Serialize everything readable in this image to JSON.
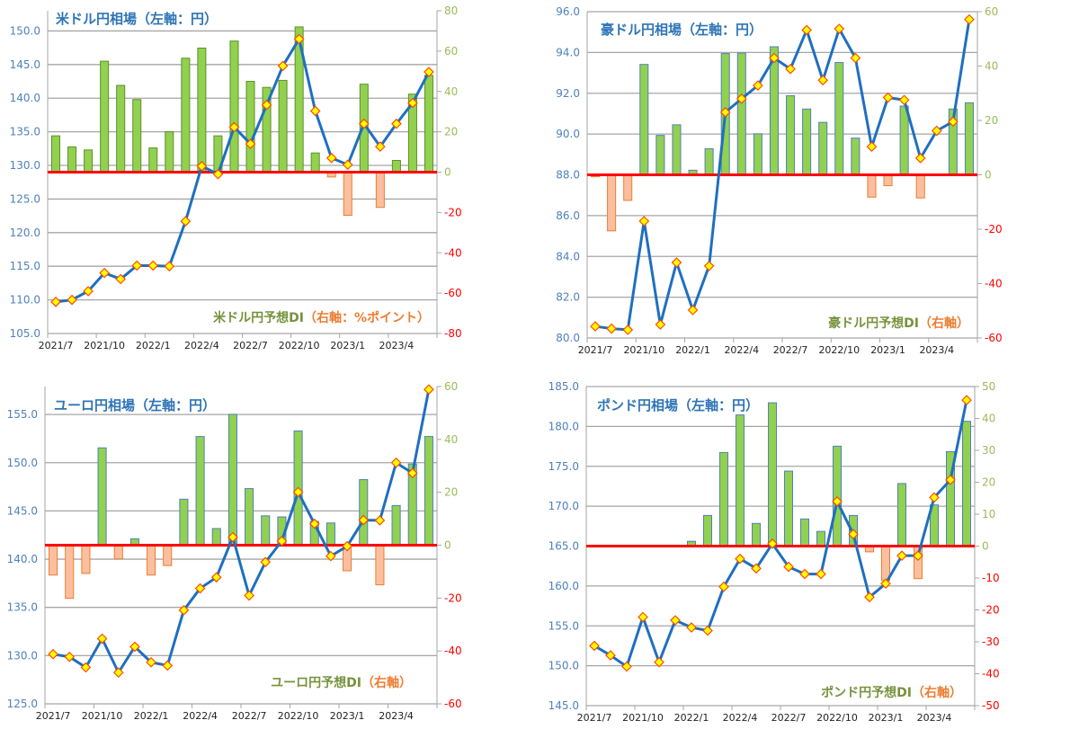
{
  "colors": {
    "line": "#1f6fc0",
    "marker_fill": "#ffff00",
    "marker_stroke": "#ff4b00",
    "bar_positive": "#92d050",
    "bar_negative": "#fbbf9f",
    "bar_negative_border": "#ed7d31",
    "zero_line": "#ff0000",
    "left_axis_text": "#4f81bd",
    "right_axis_positive": "#9bbb59",
    "right_axis_negative": "#ff0000",
    "di_label_green": "#77933c",
    "di_label_orange": "#ed7d31"
  },
  "chart_data": [
    {
      "type": "bar+line",
      "title": "米ドル円相場（左軸：円）",
      "di_label": "米ドル円予想DI",
      "di_axis_note": "（右軸：%ポイント）",
      "categories": [
        "2021/7",
        "2021/8",
        "2021/9",
        "2021/10",
        "2021/11",
        "2021/12",
        "2022/1",
        "2022/2",
        "2022/3",
        "2022/4",
        "2022/5",
        "2022/6",
        "2022/7",
        "2022/8",
        "2022/9",
        "2022/10",
        "2022/11",
        "2022/12",
        "2023/1",
        "2023/2",
        "2023/3",
        "2023/4",
        "2023/5",
        "2023/6"
      ],
      "x_tick_labels": [
        "2021/7",
        "2021/10",
        "2022/1",
        "2022/4",
        "2022/7",
        "2022/10",
        "2023/1",
        "2023/4"
      ],
      "left_axis": {
        "min": 105,
        "max": 153,
        "ticks": [
          "105.0",
          "110.0",
          "115.0",
          "120.0",
          "125.0",
          "130.0",
          "135.0",
          "140.0",
          "145.0",
          "150.0"
        ]
      },
      "right_axis": {
        "min": -80,
        "max": 80,
        "ticks": [
          "-80",
          "-60",
          "-40",
          "-20",
          "0",
          "20",
          "40",
          "60",
          "80"
        ]
      },
      "series": [
        {
          "axis": "left",
          "kind": "line",
          "values": [
            109.7,
            110.0,
            111.3,
            114.0,
            113.1,
            115.1,
            115.1,
            115.0,
            121.7,
            129.9,
            128.7,
            135.7,
            133.2,
            139.0,
            144.8,
            148.8,
            138.1,
            131.1,
            130.1,
            136.2,
            132.8,
            136.2,
            139.3,
            143.9
          ]
        },
        {
          "axis": "right",
          "kind": "bar",
          "values": [
            18,
            12.5,
            11,
            55,
            43,
            36,
            12,
            20,
            56.5,
            61.5,
            18,
            65,
            45,
            42,
            45.5,
            72,
            9.5,
            -2.4,
            -21.4,
            43.6,
            -17.5,
            5.8,
            38.7,
            48
          ]
        }
      ],
      "grid": true
    },
    {
      "type": "bar+line",
      "title": "豪ドル円相場（左軸：円）",
      "di_label": "豪ドル円予想DI",
      "di_axis_note": "（右軸）",
      "categories": [
        "2021/7",
        "2021/8",
        "2021/9",
        "2021/10",
        "2021/11",
        "2021/12",
        "2022/1",
        "2022/2",
        "2022/3",
        "2022/4",
        "2022/5",
        "2022/6",
        "2022/7",
        "2022/8",
        "2022/9",
        "2022/10",
        "2022/11",
        "2022/12",
        "2023/1",
        "2023/2",
        "2023/3",
        "2023/4",
        "2023/5",
        "2023/6"
      ],
      "x_tick_labels": [
        "2021/7",
        "2021/10",
        "2022/1",
        "2022/4",
        "2022/7",
        "2022/10",
        "2023/1",
        "2023/4"
      ],
      "left_axis": {
        "min": 80,
        "max": 96,
        "ticks": [
          "80.0",
          "82.0",
          "84.0",
          "86.0",
          "88.0",
          "90.0",
          "92.0",
          "94.0",
          "96.0"
        ]
      },
      "right_axis": {
        "min": -60,
        "max": 60,
        "ticks": [
          "-60",
          "-40",
          "-20",
          "0",
          "20",
          "40",
          "60"
        ]
      },
      "series": [
        {
          "axis": "left",
          "kind": "line",
          "values": [
            80.57,
            80.46,
            80.4,
            85.73,
            80.66,
            83.7,
            81.37,
            83.53,
            91.07,
            91.73,
            92.38,
            93.73,
            93.19,
            95.1,
            92.64,
            95.16,
            93.73,
            89.38,
            91.79,
            91.67,
            88.82,
            90.16,
            90.61,
            95.62
          ]
        },
        {
          "axis": "right",
          "kind": "bar",
          "values": [
            -0.7,
            -20.6,
            -9.4,
            40.6,
            14.5,
            18.4,
            1.7,
            9.6,
            44.6,
            44.8,
            15.1,
            47.1,
            29.1,
            24.2,
            19.3,
            41.3,
            13.5,
            -8.2,
            -4.0,
            25.3,
            -8.5,
            0,
            24.2,
            26.5
          ]
        }
      ],
      "grid": true
    },
    {
      "type": "bar+line",
      "title": "ユーロ円相場（左軸：円）",
      "di_label": "ユーロ円予想DI",
      "di_axis_note": "（右軸）",
      "categories": [
        "2021/7",
        "2021/8",
        "2021/9",
        "2021/10",
        "2021/11",
        "2021/12",
        "2022/1",
        "2022/2",
        "2022/3",
        "2022/4",
        "2022/5",
        "2022/6",
        "2022/7",
        "2022/8",
        "2022/9",
        "2022/10",
        "2022/11",
        "2022/12",
        "2023/1",
        "2023/2",
        "2023/3",
        "2023/4",
        "2023/5",
        "2023/6"
      ],
      "x_tick_labels": [
        "2021/7",
        "2021/10",
        "2022/1",
        "2022/4",
        "2022/7",
        "2022/10",
        "2023/1",
        "2023/4"
      ],
      "left_axis": {
        "min": 125,
        "max": 157.9,
        "ticks": [
          "125.0",
          "130.0",
          "135.0",
          "140.0",
          "145.0",
          "150.0",
          "155.0"
        ]
      },
      "right_axis": {
        "min": -60,
        "max": 60,
        "ticks": [
          "-60",
          "-40",
          "-20",
          "0",
          "20",
          "40",
          "60"
        ]
      },
      "series": [
        {
          "axis": "left",
          "kind": "line",
          "values": [
            130.15,
            129.87,
            128.78,
            131.76,
            128.25,
            130.92,
            129.31,
            128.97,
            134.71,
            136.97,
            138.12,
            142.28,
            136.23,
            139.7,
            141.88,
            146.96,
            143.67,
            140.32,
            141.35,
            144.05,
            144.02,
            150.0,
            148.92,
            157.6
          ]
        },
        {
          "axis": "right",
          "kind": "bar",
          "values": [
            -11.3,
            -20.1,
            -10.7,
            36.8,
            -5.2,
            2.4,
            -11.3,
            -7.7,
            17.4,
            41.1,
            6.3,
            49.5,
            21.4,
            11.1,
            10.7,
            43.2,
            9.0,
            8.4,
            -9.7,
            24.8,
            -15.0,
            15.0,
            30.7,
            41.1
          ]
        }
      ],
      "grid": true
    },
    {
      "type": "bar+line",
      "title": "ポンド円相場（左軸：円）",
      "di_label": "ポンド円予想DI",
      "di_axis_note": "（右軸）",
      "categories": [
        "2021/7",
        "2021/8",
        "2021/9",
        "2021/10",
        "2021/11",
        "2021/12",
        "2022/1",
        "2022/2",
        "2022/3",
        "2022/4",
        "2022/5",
        "2022/6",
        "2022/7",
        "2022/8",
        "2022/9",
        "2022/10",
        "2022/11",
        "2022/12",
        "2023/1",
        "2023/2",
        "2023/3",
        "2023/4",
        "2023/5",
        "2023/6"
      ],
      "x_tick_labels": [
        "2021/7",
        "2021/10",
        "2022/1",
        "2022/4",
        "2022/7",
        "2022/10",
        "2023/1",
        "2023/4"
      ],
      "left_axis": {
        "min": 145,
        "max": 185,
        "ticks": [
          "145.0",
          "150.0",
          "155.0",
          "160.0",
          "165.0",
          "170.0",
          "175.0",
          "180.0",
          "185.0"
        ]
      },
      "right_axis": {
        "min": -50,
        "max": 50,
        "ticks": [
          "-50",
          "-40",
          "-30",
          "-20",
          "-10",
          "0",
          "10",
          "20",
          "30",
          "40",
          "50"
        ]
      },
      "series": [
        {
          "axis": "left",
          "kind": "line",
          "values": [
            152.5,
            151.3,
            149.9,
            156.1,
            150.45,
            155.7,
            154.8,
            154.4,
            159.9,
            163.4,
            162.2,
            165.3,
            162.4,
            161.5,
            161.5,
            170.6,
            166.5,
            158.6,
            160.3,
            163.8,
            163.8,
            171.1,
            173.3,
            183.3
          ]
        },
        {
          "axis": "right",
          "kind": "bar",
          "values": [
            0,
            0,
            0,
            0,
            0,
            0,
            1.5,
            9.6,
            29.3,
            41.1,
            7.1,
            44.9,
            23.5,
            8.5,
            4.6,
            31.3,
            9.6,
            -1.8,
            -10.8,
            19.6,
            -10.2,
            12.9,
            29.6,
            39.1
          ]
        }
      ],
      "grid": true
    }
  ]
}
